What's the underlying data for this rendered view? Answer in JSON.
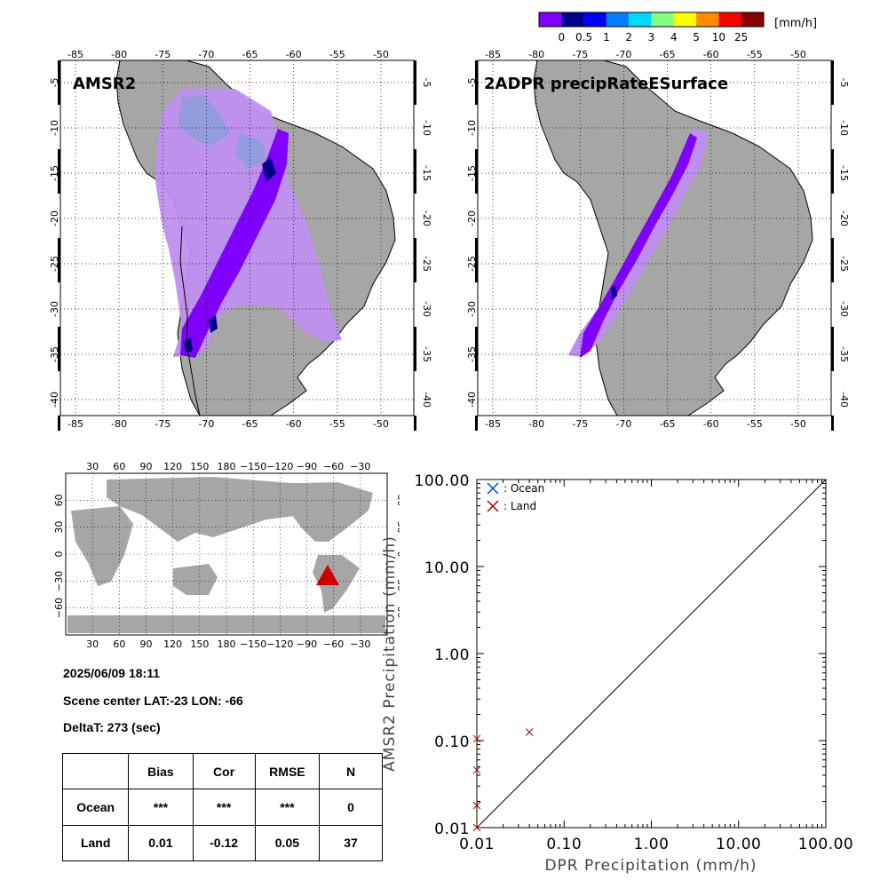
{
  "colorbar": {
    "unit_label": "[mm/h]",
    "labels": [
      "0",
      "0.5",
      "1",
      "2",
      "3",
      "4",
      "5",
      "10",
      "25"
    ],
    "colors": [
      "#7f00ff",
      "#00008c",
      "#0000ff",
      "#0080ff",
      "#00d9ff",
      "#80ff80",
      "#ffff00",
      "#ff8c00",
      "#ff0000",
      "#8b0000"
    ]
  },
  "maps": {
    "left_title": "AMSR2",
    "right_title": "2ADPR precipRateESurface",
    "lon_ticks": [
      "-85",
      "-80",
      "-75",
      "-70",
      "-65",
      "-60",
      "-55",
      "-50"
    ],
    "lat_ticks": [
      "-5",
      "-10",
      "-15",
      "-20",
      "-25",
      "-30",
      "-35",
      "-40"
    ],
    "land_color": "#a6a6a6",
    "swath_light_color": "#bf8fef",
    "swath_dark_color": "#7f00ff"
  },
  "world_map": {
    "top_ticks": [
      "30",
      "60",
      "90",
      "120",
      "150",
      "180",
      "−150",
      "−120",
      "−90",
      "−60",
      "−30"
    ],
    "bottom_ticks": [
      "30",
      "60",
      "90",
      "120",
      "150",
      "180",
      "−150",
      "−120",
      "−90",
      "−60",
      "−30"
    ],
    "lat_ticks": [
      "60",
      "30",
      "0",
      "−30",
      "−60"
    ],
    "marker_color": "#cc0000"
  },
  "info": {
    "datetime": "2025/06/09 18:11",
    "scene_center": "Scene center LAT:-23   LON: -66",
    "delta_t": "DeltaT:  273 (sec)"
  },
  "stats_table": {
    "headers": [
      "",
      "Bias",
      "Cor",
      "RMSE",
      "N"
    ],
    "rows": [
      [
        "Ocean",
        "***",
        "***",
        "***",
        "0"
      ],
      [
        "Land",
        "0.01",
        "-0.12",
        "0.05",
        "37"
      ]
    ]
  },
  "chart_data": {
    "type": "scatter",
    "xlabel": "DPR Precipitation (mm/h)",
    "ylabel": "AMSR2 Precipitation (mm/h)",
    "xscale": "log",
    "yscale": "log",
    "xlim": [
      0.01,
      100
    ],
    "ylim": [
      0.01,
      100
    ],
    "x_tick_labels": [
      "0.01",
      "0.10",
      "1.00",
      "10.00",
      "100.00"
    ],
    "y_tick_labels": [
      "0.01",
      "0.10",
      "1.00",
      "10.00",
      "100.00"
    ],
    "legend": [
      {
        "name": ": Ocean",
        "color": "#0044dd"
      },
      {
        "name": ": Land",
        "color": "#aa0000"
      }
    ],
    "legend_position": "top-left",
    "series": [
      {
        "name": ": Ocean",
        "color": "#0044dd",
        "points": []
      },
      {
        "name": ": Land",
        "color": "#aa0000",
        "points": [
          {
            "x": 0.01,
            "y": 0.105
          },
          {
            "x": 0.01,
            "y": 0.046
          },
          {
            "x": 0.01,
            "y": 0.018
          },
          {
            "x": 0.01,
            "y": 0.01
          },
          {
            "x": 0.04,
            "y": 0.125
          }
        ]
      }
    ],
    "reference_line": "1:1"
  }
}
